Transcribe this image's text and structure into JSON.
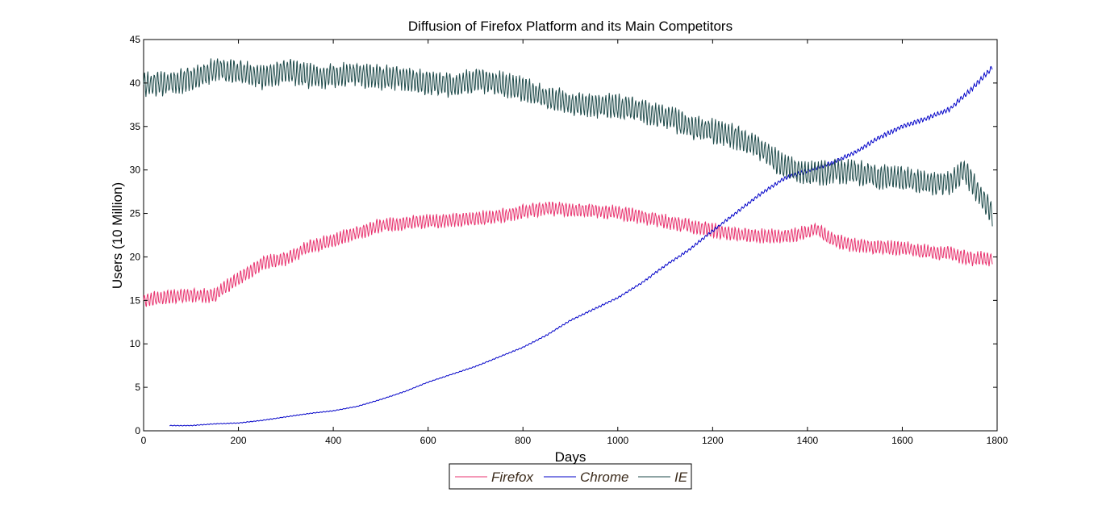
{
  "chart_data": {
    "type": "line",
    "title": "Diffusion of Firefox Platform and its Main Competitors",
    "xlabel": "Days",
    "ylabel": "Users (10 Million)",
    "xlim": [
      0,
      1800
    ],
    "ylim": [
      0,
      45
    ],
    "xticks": [
      0,
      200,
      400,
      600,
      800,
      1000,
      1200,
      1400,
      1600,
      1800
    ],
    "yticks": [
      0,
      5,
      10,
      15,
      20,
      25,
      30,
      35,
      40,
      45
    ],
    "grid": false,
    "legend_position": "bottom-outside",
    "series": [
      {
        "name": "Firefox",
        "color": "#e8336f",
        "points": [
          [
            0,
            15.0
          ],
          [
            50,
            15.4
          ],
          [
            100,
            15.6
          ],
          [
            150,
            15.6
          ],
          [
            200,
            17.5
          ],
          [
            250,
            19.3
          ],
          [
            300,
            19.8
          ],
          [
            350,
            21.2
          ],
          [
            400,
            21.9
          ],
          [
            450,
            22.8
          ],
          [
            500,
            23.6
          ],
          [
            550,
            23.9
          ],
          [
            600,
            24.1
          ],
          [
            650,
            24.2
          ],
          [
            700,
            24.4
          ],
          [
            750,
            24.7
          ],
          [
            800,
            25.2
          ],
          [
            850,
            25.6
          ],
          [
            900,
            25.4
          ],
          [
            950,
            25.3
          ],
          [
            1000,
            25.1
          ],
          [
            1050,
            24.6
          ],
          [
            1100,
            24.1
          ],
          [
            1150,
            23.6
          ],
          [
            1200,
            23.1
          ],
          [
            1250,
            22.6
          ],
          [
            1300,
            22.4
          ],
          [
            1350,
            22.4
          ],
          [
            1400,
            22.8
          ],
          [
            1420,
            23.2
          ],
          [
            1450,
            22.0
          ],
          [
            1500,
            21.3
          ],
          [
            1550,
            21.1
          ],
          [
            1600,
            21.0
          ],
          [
            1650,
            20.6
          ],
          [
            1700,
            20.4
          ],
          [
            1750,
            19.8
          ],
          [
            1790,
            19.8
          ]
        ]
      },
      {
        "name": "Chrome",
        "color": "#0000c8",
        "points": [
          [
            55,
            0.6
          ],
          [
            100,
            0.6
          ],
          [
            150,
            0.8
          ],
          [
            200,
            0.9
          ],
          [
            250,
            1.2
          ],
          [
            300,
            1.6
          ],
          [
            350,
            2.0
          ],
          [
            400,
            2.3
          ],
          [
            450,
            2.8
          ],
          [
            500,
            3.6
          ],
          [
            550,
            4.5
          ],
          [
            600,
            5.6
          ],
          [
            650,
            6.5
          ],
          [
            700,
            7.4
          ],
          [
            750,
            8.5
          ],
          [
            800,
            9.6
          ],
          [
            850,
            11.0
          ],
          [
            900,
            12.7
          ],
          [
            950,
            14.0
          ],
          [
            1000,
            15.3
          ],
          [
            1050,
            17.0
          ],
          [
            1100,
            19.0
          ],
          [
            1150,
            20.8
          ],
          [
            1200,
            23.0
          ],
          [
            1250,
            25.1
          ],
          [
            1300,
            27.2
          ],
          [
            1350,
            29.0
          ],
          [
            1400,
            29.9
          ],
          [
            1450,
            30.8
          ],
          [
            1500,
            32.0
          ],
          [
            1550,
            33.7
          ],
          [
            1600,
            35.0
          ],
          [
            1650,
            35.9
          ],
          [
            1700,
            37.0
          ],
          [
            1750,
            39.5
          ],
          [
            1790,
            41.8
          ]
        ]
      },
      {
        "name": "IE",
        "color": "#1e4a4a",
        "points": [
          [
            0,
            39.8
          ],
          [
            50,
            40.0
          ],
          [
            100,
            40.4
          ],
          [
            150,
            41.6
          ],
          [
            200,
            41.3
          ],
          [
            250,
            40.7
          ],
          [
            300,
            41.4
          ],
          [
            350,
            40.8
          ],
          [
            400,
            40.8
          ],
          [
            450,
            41.0
          ],
          [
            500,
            40.6
          ],
          [
            550,
            40.6
          ],
          [
            600,
            40.0
          ],
          [
            650,
            39.8
          ],
          [
            700,
            40.3
          ],
          [
            750,
            40.0
          ],
          [
            800,
            39.3
          ],
          [
            850,
            38.3
          ],
          [
            900,
            37.7
          ],
          [
            950,
            37.4
          ],
          [
            1000,
            37.3
          ],
          [
            1050,
            36.8
          ],
          [
            1100,
            36.2
          ],
          [
            1150,
            35.0
          ],
          [
            1200,
            34.5
          ],
          [
            1250,
            33.8
          ],
          [
            1300,
            32.5
          ],
          [
            1350,
            30.4
          ],
          [
            1400,
            29.5
          ],
          [
            1450,
            29.8
          ],
          [
            1500,
            29.8
          ],
          [
            1550,
            29.2
          ],
          [
            1600,
            29.0
          ],
          [
            1650,
            28.6
          ],
          [
            1700,
            28.5
          ],
          [
            1730,
            30.0
          ],
          [
            1760,
            27.5
          ],
          [
            1790,
            25.0
          ]
        ]
      }
    ]
  }
}
